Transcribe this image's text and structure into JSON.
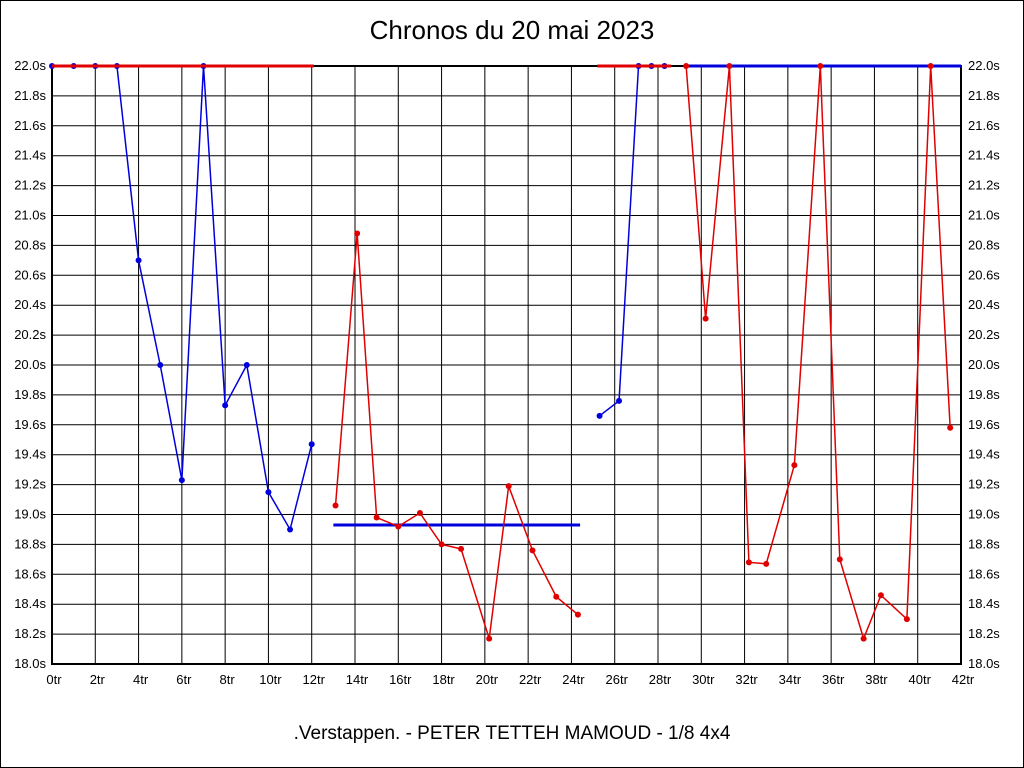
{
  "page": {
    "title": "Chronos du 20 mai 2023",
    "footer": ".Verstappen. - PETER TETTEH MAMOUD - 1/8 4x4"
  },
  "chart_data": {
    "type": "line",
    "title": "Chronos du 20 mai 2023",
    "footer_label": ".Verstappen. - PETER TETTEH MAMOUD - 1/8 4x4",
    "x_unit": "tr",
    "y_unit": "s",
    "xlim": [
      0,
      42
    ],
    "ylim": [
      18.0,
      22.0
    ],
    "grid": true,
    "x_tick_labels": [
      "0tr",
      "2tr",
      "4tr",
      "6tr",
      "8tr",
      "10tr",
      "12tr",
      "14tr",
      "16tr",
      "18tr",
      "20tr",
      "22tr",
      "24tr",
      "26tr",
      "28tr",
      "30tr",
      "32tr",
      "34tr",
      "36tr",
      "38tr",
      "40tr",
      "42tr"
    ],
    "y_tick_labels": [
      "22.0s",
      "21.8s",
      "21.6s",
      "21.4s",
      "21.2s",
      "21.0s",
      "20.8s",
      "20.6s",
      "20.4s",
      "20.2s",
      "20.0s",
      "19.8s",
      "19.6s",
      "19.4s",
      "19.2s",
      "19.0s",
      "18.8s",
      "18.6s",
      "18.4s",
      "18.2s",
      "18.0s"
    ],
    "series": [
      {
        "name": "driver-blue",
        "color": "#0000dd",
        "segments": [
          {
            "points": [
              [
                0,
                22
              ],
              [
                1,
                22
              ],
              [
                2,
                22
              ],
              [
                3,
                22
              ],
              [
                4,
                20.7
              ],
              [
                5,
                20.0
              ],
              [
                6,
                19.23
              ],
              [
                7,
                22
              ],
              [
                8,
                19.73
              ],
              [
                9,
                20.0
              ],
              [
                10,
                19.15
              ],
              [
                11,
                18.9
              ],
              [
                12,
                19.47
              ]
            ],
            "markers": true,
            "width": 1.5
          },
          {
            "points": [
              [
                13,
                18.93
              ],
              [
                24.4,
                18.93
              ]
            ],
            "markers": false,
            "width": 3
          },
          {
            "points": [
              [
                25.3,
                19.66
              ],
              [
                26.2,
                19.76
              ],
              [
                27.1,
                22
              ],
              [
                27.7,
                22
              ],
              [
                28.3,
                22
              ]
            ],
            "markers": true,
            "width": 1.5
          },
          {
            "points": [
              [
                29.2,
                22
              ],
              [
                42,
                22
              ]
            ],
            "markers": false,
            "width": 3
          }
        ]
      },
      {
        "name": "driver-red",
        "color": "#e00000",
        "segments": [
          {
            "points": [
              [
                0,
                22
              ],
              [
                12.1,
                22
              ]
            ],
            "markers": false,
            "width": 3
          },
          {
            "points": [
              [
                13.1,
                19.06
              ],
              [
                14.1,
                20.88
              ],
              [
                15,
                18.98
              ],
              [
                16,
                18.92
              ],
              [
                17,
                19.01
              ],
              [
                18,
                18.8
              ],
              [
                18.9,
                18.77
              ],
              [
                20.2,
                18.17
              ],
              [
                21.1,
                19.19
              ],
              [
                22.2,
                18.76
              ],
              [
                23.3,
                18.45
              ],
              [
                24.3,
                18.33
              ]
            ],
            "markers": true,
            "width": 1.5
          },
          {
            "points": [
              [
                25.2,
                22
              ],
              [
                28.6,
                22
              ]
            ],
            "markers": false,
            "width": 3
          },
          {
            "points": [
              [
                29.3,
                22
              ],
              [
                30.2,
                20.31
              ],
              [
                31.3,
                22
              ],
              [
                32.2,
                18.68
              ],
              [
                33,
                18.67
              ],
              [
                34.3,
                19.33
              ],
              [
                35.5,
                22
              ],
              [
                36.4,
                18.7
              ],
              [
                37.5,
                18.17
              ],
              [
                38.3,
                18.46
              ],
              [
                39.5,
                18.3
              ],
              [
                40.6,
                22
              ],
              [
                41.5,
                19.58
              ]
            ],
            "markers": true,
            "width": 1.5
          }
        ]
      }
    ]
  }
}
